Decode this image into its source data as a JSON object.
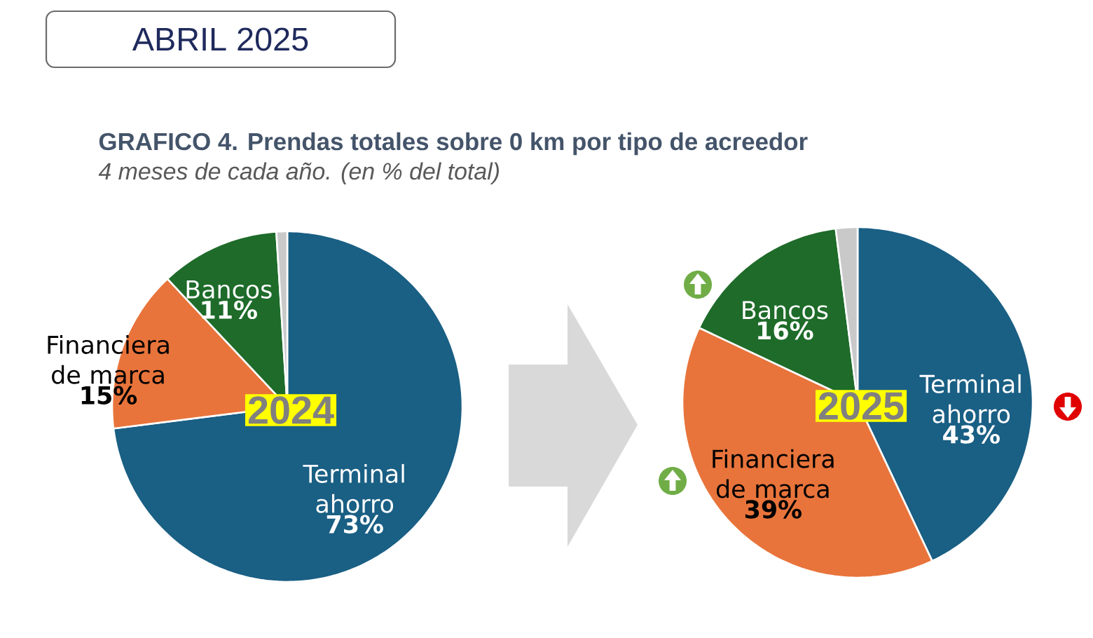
{
  "chart_data": [
    {
      "type": "other",
      "title": "GRAFICO 4. Prendas totales sobre 0 km por tipo de acreedor",
      "subtitle": "4 meses de cada año. (en % del total)",
      "annotations": [
        "ABRIL 2025"
      ]
    },
    {
      "type": "pie",
      "title": "2024",
      "categories": [
        "Terminal ahorro",
        "Financiera de marca",
        "Bancos",
        null
      ],
      "values": [
        73,
        15,
        11,
        1
      ],
      "colors": [
        "#1a5f84",
        "#e8743b",
        "#1e6b2a",
        "#c9c9c9"
      ],
      "value_labels": [
        "73%",
        "15%",
        "11%",
        null
      ]
    },
    {
      "type": "pie",
      "title": "2025",
      "categories": [
        "Terminal ahorro",
        "Financiera de marca",
        "Bancos",
        null
      ],
      "values": [
        43,
        39,
        16,
        2
      ],
      "colors": [
        "#1a5f84",
        "#e8743b",
        "#1e6b2a",
        "#c9c9c9"
      ],
      "value_labels": [
        "43%",
        "39%",
        "16%",
        null
      ]
    }
  ]
}
